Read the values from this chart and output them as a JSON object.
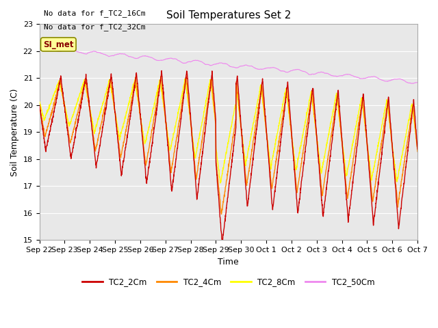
{
  "title": "Soil Temperatures Set 2",
  "ylabel": "Soil Temperature (C)",
  "xlabel": "Time",
  "no_data_text1": "No data for f_TC2_16Cm",
  "no_data_text2": "No data for f_TC2_32Cm",
  "si_met_label": "SI_met",
  "ylim": [
    15.0,
    23.0
  ],
  "yticks": [
    15.0,
    16.0,
    17.0,
    18.0,
    19.0,
    20.0,
    21.0,
    22.0,
    23.0
  ],
  "xtick_labels": [
    "Sep 22",
    "Sep 23",
    "Sep 24",
    "Sep 25",
    "Sep 26",
    "Sep 27",
    "Sep 28",
    "Sep 29",
    "Sep 30",
    "Oct 1",
    "Oct 2",
    "Oct 3",
    "Oct 4",
    "Oct 5",
    "Oct 6",
    "Oct 7"
  ],
  "colors": {
    "TC2_2Cm": "#cc0000",
    "TC2_4Cm": "#ff8800",
    "TC2_8Cm": "#ffff00",
    "TC2_50Cm": "#ee88ee"
  },
  "legend_labels": [
    "TC2_2Cm",
    "TC2_4Cm",
    "TC2_8Cm",
    "TC2_50Cm"
  ],
  "background_color": "#e8e8e8",
  "si_met_bg": "#ffff99",
  "si_met_border": "#888800",
  "grid_color": "#ffffff"
}
